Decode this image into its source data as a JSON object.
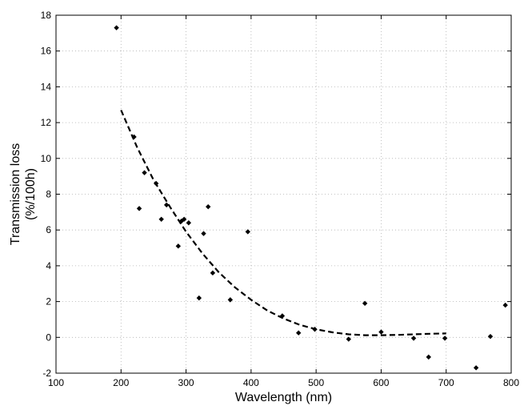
{
  "chart_data": {
    "type": "scatter",
    "xlabel": "Wavelength (nm)",
    "ylabel_lines": [
      "Transmission loss",
      "(%/100h)"
    ],
    "xlim": [
      100,
      800
    ],
    "ylim": [
      -2,
      18
    ],
    "xticks": [
      100,
      200,
      300,
      400,
      500,
      600,
      700,
      800
    ],
    "yticks": [
      -2,
      0,
      2,
      4,
      6,
      8,
      10,
      12,
      14,
      16,
      18
    ],
    "grid": true,
    "points": [
      {
        "x": 193,
        "y": 17.3
      },
      {
        "x": 220,
        "y": 11.2
      },
      {
        "x": 228,
        "y": 7.2
      },
      {
        "x": 236,
        "y": 9.2
      },
      {
        "x": 254,
        "y": 8.6
      },
      {
        "x": 262,
        "y": 6.6
      },
      {
        "x": 270,
        "y": 7.4
      },
      {
        "x": 288,
        "y": 5.1
      },
      {
        "x": 293,
        "y": 6.5
      },
      {
        "x": 297,
        "y": 6.6
      },
      {
        "x": 304,
        "y": 6.4
      },
      {
        "x": 320,
        "y": 2.2
      },
      {
        "x": 327,
        "y": 5.8
      },
      {
        "x": 334,
        "y": 7.3
      },
      {
        "x": 341,
        "y": 3.6
      },
      {
        "x": 368,
        "y": 2.1
      },
      {
        "x": 395,
        "y": 5.9
      },
      {
        "x": 448,
        "y": 1.2
      },
      {
        "x": 473,
        "y": 0.25
      },
      {
        "x": 498,
        "y": 0.45
      },
      {
        "x": 550,
        "y": -0.1
      },
      {
        "x": 575,
        "y": 1.9
      },
      {
        "x": 600,
        "y": 0.3
      },
      {
        "x": 650,
        "y": -0.05
      },
      {
        "x": 673,
        "y": -1.1
      },
      {
        "x": 698,
        "y": -0.05
      },
      {
        "x": 746,
        "y": -1.7
      },
      {
        "x": 768,
        "y": 0.05
      },
      {
        "x": 791,
        "y": 1.8
      }
    ],
    "fit_curve": {
      "style": "dashed",
      "x": [
        200,
        225,
        250,
        275,
        300,
        325,
        350,
        375,
        400,
        425,
        450,
        475,
        500,
        525,
        550,
        575,
        600,
        625,
        650,
        675,
        700
      ],
      "y": [
        12.7,
        10.6,
        8.8,
        7.3,
        5.9,
        4.7,
        3.65,
        2.8,
        2.1,
        1.5,
        1.05,
        0.7,
        0.45,
        0.28,
        0.17,
        0.12,
        0.12,
        0.14,
        0.17,
        0.2,
        0.22
      ]
    }
  }
}
